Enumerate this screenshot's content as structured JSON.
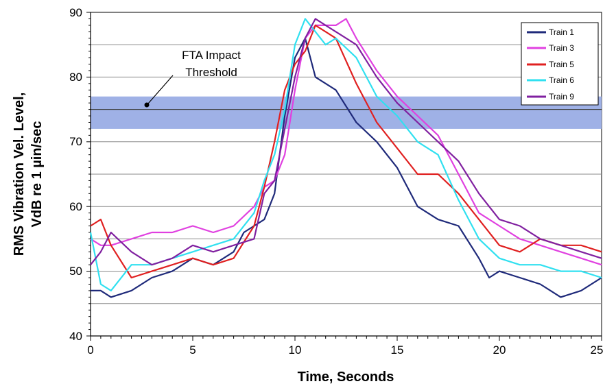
{
  "chart_data": {
    "type": "line",
    "title": "",
    "xlabel": "Time, Seconds",
    "ylabel_line1": "RMS Vibration Vel. Level,",
    "ylabel_line2": "VdB re 1 µin/sec",
    "xlim": [
      0,
      25
    ],
    "ylim": [
      40,
      90
    ],
    "x_ticks": [
      "0",
      "5",
      "10",
      "15",
      "20",
      "25"
    ],
    "y_ticks": [
      "40",
      "50",
      "60",
      "70",
      "80",
      "90"
    ],
    "grid": "horizontal lines every 5 VdB",
    "legend_position": "top-right",
    "threshold": {
      "label_line1": "FTA Impact",
      "label_line2": "Threshold",
      "value": 75,
      "band": [
        72,
        77
      ],
      "band_color": "#9fb1e6"
    },
    "series": [
      {
        "name": "Train 1",
        "color": "#1f2a7a",
        "x": [
          0,
          0.5,
          1,
          2,
          3,
          4,
          5,
          6,
          7,
          7.5,
          8,
          8.5,
          9,
          9.5,
          10,
          10.5,
          11,
          12,
          13,
          14,
          15,
          16,
          17,
          18,
          19,
          19.5,
          20,
          21,
          22,
          22.5,
          23,
          24,
          25
        ],
        "y": [
          47,
          47,
          46,
          47,
          49,
          50,
          52,
          51,
          53,
          56,
          57,
          58,
          62,
          74,
          83,
          86,
          80,
          78,
          73,
          70,
          66,
          60,
          58,
          57,
          52,
          49,
          50,
          49,
          48,
          47,
          46,
          47,
          49
        ]
      },
      {
        "name": "Train 3",
        "color": "#e040e0",
        "x": [
          0,
          0.5,
          1,
          2,
          3,
          4,
          5,
          6,
          7,
          8,
          8.5,
          9,
          9.5,
          10,
          10.5,
          11,
          12,
          12.5,
          13,
          14,
          15,
          16,
          17,
          18,
          19,
          20,
          21,
          22,
          23,
          24,
          25
        ],
        "y": [
          55,
          54,
          54,
          55,
          56,
          56,
          57,
          56,
          57,
          60,
          63,
          64,
          68,
          78,
          86,
          88,
          88,
          89,
          86,
          81,
          77,
          74,
          71,
          65,
          59,
          57,
          55,
          54,
          53,
          52,
          51
        ]
      },
      {
        "name": "Train 5",
        "color": "#e02020",
        "x": [
          0,
          0.5,
          1,
          2,
          3,
          4,
          5,
          6,
          7,
          8,
          8.5,
          9,
          9.5,
          10,
          10.5,
          11,
          11.5,
          12,
          13,
          14,
          15,
          16,
          17,
          18,
          19,
          20,
          21,
          22,
          23,
          24,
          25
        ],
        "y": [
          57,
          58,
          54,
          49,
          50,
          51,
          52,
          51,
          52,
          57,
          63,
          70,
          78,
          82,
          84,
          88,
          87,
          86,
          79,
          73,
          69,
          65,
          65,
          62,
          58,
          54,
          53,
          55,
          54,
          54,
          53
        ]
      },
      {
        "name": "Train 6",
        "color": "#30e0f0",
        "x": [
          0,
          0.5,
          1,
          2,
          3,
          4,
          5,
          6,
          7,
          8,
          8.5,
          9,
          9.5,
          10,
          10.5,
          11,
          11.5,
          12,
          13,
          14,
          15,
          16,
          17,
          18,
          19,
          20,
          21,
          22,
          23,
          24,
          25
        ],
        "y": [
          56,
          48,
          47,
          51,
          51,
          52,
          53,
          54,
          55,
          59,
          64,
          68,
          75,
          85,
          89,
          87,
          85,
          86,
          83,
          77,
          74,
          70,
          68,
          61,
          55,
          52,
          51,
          51,
          50,
          50,
          49
        ]
      },
      {
        "name": "Train 9",
        "color": "#8020a0",
        "x": [
          0,
          0.5,
          1,
          2,
          3,
          4,
          5,
          6,
          7,
          8,
          8.5,
          9,
          9.5,
          10,
          10.5,
          11,
          11.5,
          12,
          13,
          14,
          15,
          16,
          17,
          18,
          19,
          20,
          21,
          22,
          23,
          24,
          25
        ],
        "y": [
          51,
          53,
          56,
          53,
          51,
          52,
          54,
          53,
          54,
          55,
          62,
          64,
          72,
          80,
          86,
          89,
          88,
          87,
          85,
          80,
          76,
          73,
          70,
          67,
          62,
          58,
          57,
          55,
          54,
          53,
          52
        ]
      }
    ]
  }
}
